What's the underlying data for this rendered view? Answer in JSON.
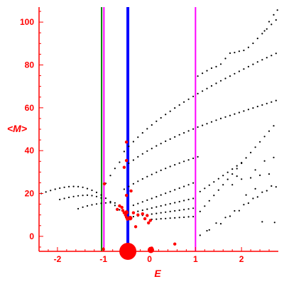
{
  "chart_data": {
    "type": "scatter",
    "title": "",
    "xlabel": "E",
    "ylabel": "<M>",
    "xlim": [
      -2.4,
      2.8
    ],
    "ylim": [
      -7,
      107
    ],
    "xticks": [
      -2,
      -1,
      0,
      1,
      2
    ],
    "xtick_labels": [
      "-2",
      "-1",
      "0",
      "1",
      "2"
    ],
    "yticks": [
      0,
      20,
      40,
      60,
      80,
      100
    ],
    "ytick_labels": [
      "0",
      "20",
      "40",
      "60",
      "80",
      "100"
    ],
    "grid": false,
    "legend": "none",
    "colors": {
      "axis": "#ff0000",
      "points": "#000000",
      "highlight_points": "#ff0000",
      "vline_green": "#008000",
      "vline_magenta": "#ff00ff",
      "vline_blue": "#0000ff"
    },
    "vertical_lines": [
      {
        "x": -1.04,
        "color": "#008000",
        "width": "thin"
      },
      {
        "x": -0.99,
        "color": "#ff00ff",
        "width": "thin"
      },
      {
        "x": -0.47,
        "color": "#0000ff",
        "width": "thick"
      },
      {
        "x": 1.0,
        "color": "#ff00ff",
        "width": "thin"
      }
    ],
    "series": [
      {
        "marker": "black-dot",
        "color": "#000000",
        "points": [
          [
            -2.35,
            20.0
          ],
          [
            -2.25,
            20.7
          ],
          [
            -2.15,
            21.4
          ],
          [
            -2.05,
            22.0
          ],
          [
            -1.95,
            22.5
          ],
          [
            -1.85,
            22.9
          ],
          [
            -1.75,
            23.2
          ],
          [
            -1.65,
            23.3
          ],
          [
            -1.55,
            23.2
          ],
          [
            -1.45,
            22.9
          ],
          [
            -1.35,
            22.3
          ],
          [
            -1.25,
            21.5
          ],
          [
            -1.15,
            20.5
          ],
          [
            -1.05,
            19.3
          ],
          [
            -0.95,
            17.8
          ],
          [
            -0.85,
            16.2
          ],
          [
            -0.75,
            14.4
          ],
          [
            -0.65,
            12.4
          ],
          [
            -1.95,
            17.2
          ],
          [
            -1.85,
            17.7
          ],
          [
            -1.75,
            18.2
          ],
          [
            -1.65,
            18.6
          ],
          [
            -1.55,
            18.9
          ],
          [
            -1.45,
            19.1
          ],
          [
            -1.35,
            19.2
          ],
          [
            -1.25,
            19.0
          ],
          [
            -1.15,
            18.6
          ],
          [
            -1.05,
            17.9
          ],
          [
            -1.55,
            12.9
          ],
          [
            -1.45,
            13.6
          ],
          [
            -1.35,
            14.2
          ],
          [
            -1.25,
            14.7
          ],
          [
            -1.15,
            15.1
          ],
          [
            -1.05,
            15.4
          ],
          [
            -0.95,
            15.6
          ],
          [
            -0.85,
            15.7
          ],
          [
            -0.75,
            15.6
          ],
          [
            -0.95,
            24.7
          ],
          [
            -0.85,
            28.4
          ],
          [
            -0.75,
            31.7
          ],
          [
            -0.65,
            34.6
          ],
          [
            -0.55,
            39.6
          ],
          [
            -0.45,
            42.0
          ],
          [
            -0.35,
            44.2
          ],
          [
            -0.25,
            46.3
          ],
          [
            -0.15,
            48.3
          ],
          [
            -0.05,
            50.2
          ],
          [
            0.05,
            52.0
          ],
          [
            0.15,
            53.7
          ],
          [
            0.25,
            55.3
          ],
          [
            0.35,
            56.9
          ],
          [
            0.45,
            58.4
          ],
          [
            0.55,
            59.9
          ],
          [
            0.65,
            61.3
          ],
          [
            0.75,
            62.7
          ],
          [
            0.85,
            64.0
          ],
          [
            0.95,
            65.3
          ],
          [
            1.05,
            66.6
          ],
          [
            1.15,
            67.8
          ],
          [
            1.25,
            69.0
          ],
          [
            1.35,
            70.2
          ],
          [
            1.45,
            71.4
          ],
          [
            1.55,
            72.6
          ],
          [
            1.65,
            73.7
          ],
          [
            1.75,
            74.8
          ],
          [
            1.85,
            75.9
          ],
          [
            1.95,
            77.0
          ],
          [
            2.05,
            78.1
          ],
          [
            2.15,
            79.2
          ],
          [
            2.25,
            80.3
          ],
          [
            2.35,
            81.4
          ],
          [
            2.45,
            82.4
          ],
          [
            2.55,
            83.4
          ],
          [
            2.65,
            84.4
          ],
          [
            2.75,
            85.4
          ],
          [
            -0.55,
            32.5
          ],
          [
            -0.45,
            34.1
          ],
          [
            -0.35,
            35.6
          ],
          [
            -0.25,
            37.1
          ],
          [
            -0.15,
            38.5
          ],
          [
            -0.05,
            39.8
          ],
          [
            0.05,
            41.0
          ],
          [
            0.15,
            42.2
          ],
          [
            0.25,
            43.3
          ],
          [
            0.35,
            44.4
          ],
          [
            0.45,
            45.4
          ],
          [
            0.55,
            46.4
          ],
          [
            0.65,
            47.4
          ],
          [
            0.75,
            48.3
          ],
          [
            0.85,
            49.2
          ],
          [
            0.95,
            50.1
          ],
          [
            1.05,
            51.0
          ],
          [
            1.15,
            51.8
          ],
          [
            1.25,
            52.6
          ],
          [
            1.35,
            53.4
          ],
          [
            1.45,
            54.2
          ],
          [
            1.55,
            55.0
          ],
          [
            1.65,
            55.7
          ],
          [
            1.75,
            56.4
          ],
          [
            1.85,
            57.1
          ],
          [
            1.95,
            57.8
          ],
          [
            2.05,
            58.5
          ],
          [
            2.15,
            59.2
          ],
          [
            2.25,
            59.9
          ],
          [
            2.35,
            60.6
          ],
          [
            2.45,
            61.3
          ],
          [
            2.55,
            62.0
          ],
          [
            2.65,
            62.7
          ],
          [
            2.75,
            63.4
          ],
          [
            -0.55,
            22.0
          ],
          [
            -0.45,
            23.3
          ],
          [
            -0.35,
            24.5
          ],
          [
            -0.25,
            25.7
          ],
          [
            -0.15,
            26.8
          ],
          [
            -0.05,
            27.9
          ],
          [
            0.05,
            28.9
          ],
          [
            0.15,
            29.9
          ],
          [
            0.25,
            30.8
          ],
          [
            0.35,
            31.7
          ],
          [
            0.45,
            32.6
          ],
          [
            0.55,
            33.4
          ],
          [
            0.65,
            34.2
          ],
          [
            0.75,
            35.0
          ],
          [
            0.85,
            35.7
          ],
          [
            0.95,
            36.4
          ],
          [
            1.05,
            37.1
          ],
          [
            1.05,
            74.8
          ],
          [
            1.15,
            76.1
          ],
          [
            1.25,
            77.3
          ],
          [
            1.35,
            78.5
          ],
          [
            1.45,
            79.2
          ],
          [
            1.55,
            80.4
          ],
          [
            1.65,
            83.0
          ],
          [
            1.75,
            85.5
          ],
          [
            1.85,
            85.8
          ],
          [
            1.95,
            86.4
          ],
          [
            2.05,
            86.8
          ],
          [
            2.15,
            88.2
          ],
          [
            2.25,
            90.1
          ],
          [
            2.35,
            92.4
          ],
          [
            2.45,
            94.6
          ],
          [
            2.55,
            96.8
          ],
          [
            2.65,
            98.9
          ],
          [
            2.75,
            101.0
          ],
          [
            2.5,
            95.9
          ],
          [
            2.6,
            100.2
          ],
          [
            2.7,
            103.4
          ],
          [
            2.78,
            105.6
          ],
          [
            1.1,
            11.6
          ],
          [
            1.2,
            14.1
          ],
          [
            1.3,
            16.6
          ],
          [
            1.4,
            19.1
          ],
          [
            1.5,
            21.6
          ],
          [
            1.6,
            24.1
          ],
          [
            1.7,
            26.6
          ],
          [
            1.8,
            29.1
          ],
          [
            1.9,
            31.6
          ],
          [
            2.0,
            34.1
          ],
          [
            2.1,
            36.6
          ],
          [
            2.2,
            39.1
          ],
          [
            2.3,
            41.6
          ],
          [
            2.4,
            44.1
          ],
          [
            2.5,
            46.6
          ],
          [
            2.6,
            49.1
          ],
          [
            2.7,
            51.6
          ],
          [
            1.1,
            20.9
          ],
          [
            1.2,
            22.4
          ],
          [
            1.3,
            23.9
          ],
          [
            1.4,
            25.4
          ],
          [
            1.5,
            26.9
          ],
          [
            1.6,
            28.4
          ],
          [
            1.7,
            29.9
          ],
          [
            1.8,
            31.4
          ],
          [
            1.9,
            32.9
          ],
          [
            2.0,
            34.4
          ],
          [
            -0.35,
            14.5
          ],
          [
            -0.25,
            15.3
          ],
          [
            -0.15,
            16.1
          ],
          [
            -0.05,
            16.9
          ],
          [
            0.05,
            17.7
          ],
          [
            0.15,
            18.5
          ],
          [
            0.25,
            19.3
          ],
          [
            0.35,
            20.1
          ],
          [
            0.45,
            20.9
          ],
          [
            0.55,
            21.7
          ],
          [
            0.65,
            22.5
          ],
          [
            0.75,
            23.3
          ],
          [
            0.85,
            24.1
          ],
          [
            0.95,
            24.9
          ],
          [
            -0.35,
            11.2
          ],
          [
            -0.25,
            11.7
          ],
          [
            -0.15,
            12.2
          ],
          [
            -0.05,
            12.7
          ],
          [
            0.05,
            13.2
          ],
          [
            0.15,
            13.7
          ],
          [
            0.25,
            14.2
          ],
          [
            0.35,
            14.7
          ],
          [
            0.45,
            15.2
          ],
          [
            0.55,
            15.7
          ],
          [
            0.65,
            16.2
          ],
          [
            0.75,
            16.7
          ],
          [
            0.85,
            17.2
          ],
          [
            0.95,
            17.7
          ],
          [
            -0.35,
            9.2
          ],
          [
            -0.25,
            9.5
          ],
          [
            -0.15,
            9.8
          ],
          [
            -0.05,
            10.1
          ],
          [
            0.05,
            10.4
          ],
          [
            0.15,
            10.7
          ],
          [
            0.25,
            11.0
          ],
          [
            0.35,
            11.3
          ],
          [
            0.45,
            11.6
          ],
          [
            0.55,
            11.9
          ],
          [
            0.65,
            12.2
          ],
          [
            0.75,
            12.5
          ],
          [
            0.85,
            12.8
          ],
          [
            0.95,
            13.1
          ],
          [
            0.05,
            7.9
          ],
          [
            0.15,
            8.0
          ],
          [
            0.25,
            8.2
          ],
          [
            0.35,
            8.3
          ],
          [
            0.45,
            8.5
          ],
          [
            0.55,
            8.6
          ],
          [
            0.65,
            8.8
          ],
          [
            0.75,
            8.9
          ],
          [
            0.85,
            9.1
          ],
          [
            0.95,
            9.2
          ],
          [
            1.1,
            0.5
          ],
          [
            1.25,
            2.6
          ],
          [
            1.45,
            6.2
          ],
          [
            1.65,
            8.8
          ],
          [
            1.85,
            11.9
          ],
          [
            2.05,
            14.8
          ],
          [
            2.25,
            17.7
          ],
          [
            2.45,
            20.6
          ],
          [
            2.65,
            23.5
          ],
          [
            1.3,
            3.0
          ],
          [
            1.55,
            5.9
          ],
          [
            1.75,
            9.4
          ],
          [
            1.95,
            12.0
          ],
          [
            2.15,
            15.5
          ],
          [
            2.35,
            18.4
          ],
          [
            2.55,
            21.3
          ],
          [
            2.75,
            23.1
          ],
          [
            2.72,
            6.5
          ],
          [
            2.45,
            6.8
          ],
          [
            2.0,
            26.7
          ],
          [
            2.2,
            27.3
          ],
          [
            2.4,
            28.5
          ],
          [
            2.6,
            29.1
          ],
          [
            1.9,
            28.1
          ],
          [
            2.3,
            31.0
          ],
          [
            2.5,
            35.2
          ],
          [
            2.7,
            36.8
          ],
          [
            2.1,
            19.3
          ],
          [
            2.3,
            22.2
          ],
          [
            1.8,
            24.1
          ]
        ]
      },
      {
        "marker": "red-dot",
        "color": "#ff0000",
        "points": [
          [
            -0.98,
            24.5
          ],
          [
            -0.55,
            32.2
          ],
          [
            -0.5,
            35.4
          ],
          [
            -0.5,
            44.0
          ],
          [
            -0.4,
            21.2
          ],
          [
            -0.5,
            19.1
          ],
          [
            -0.7,
            12.6
          ],
          [
            -0.65,
            14.2
          ],
          [
            -0.6,
            13.5
          ],
          [
            -0.58,
            12.1
          ],
          [
            -0.55,
            11.0
          ],
          [
            -0.52,
            9.9
          ],
          [
            -0.5,
            8.9
          ],
          [
            -0.48,
            8.0
          ],
          [
            -0.35,
            11.0
          ],
          [
            -0.25,
            10.0
          ],
          [
            -0.15,
            10.5
          ],
          [
            -0.05,
            9.7
          ],
          [
            -0.02,
            6.3
          ],
          [
            0.02,
            7.4
          ],
          [
            -0.3,
            4.5
          ],
          [
            -0.1,
            8.2
          ],
          [
            -1.0,
            -6.0
          ],
          [
            0.55,
            -3.6
          ],
          [
            0.05,
            -5.5
          ],
          [
            -0.45,
            -5.8
          ]
        ]
      }
    ]
  }
}
